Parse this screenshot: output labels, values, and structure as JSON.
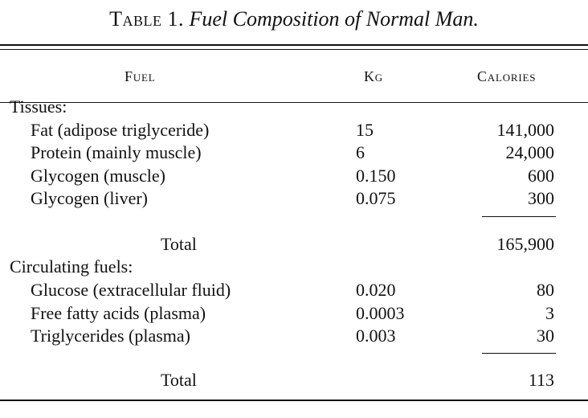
{
  "caption": {
    "label": "Table 1.",
    "title": "Fuel Composition of Normal Man."
  },
  "headers": {
    "fuel": "Fuel",
    "kg": "Kg",
    "calories": "Calories"
  },
  "tissues": {
    "heading": "Tissues:",
    "rows": [
      {
        "fuel": "Fat (adipose triglyceride)",
        "kg": "15",
        "calories": "141,000"
      },
      {
        "fuel": "Protein (mainly muscle)",
        "kg": "6",
        "calories": "24,000"
      },
      {
        "fuel": "Glycogen (muscle)",
        "kg": "0.150",
        "calories": "600"
      },
      {
        "fuel": "Glycogen (liver)",
        "kg": "0.075",
        "calories": "300"
      }
    ],
    "total_label": "Total",
    "total_calories": "165,900"
  },
  "circulating": {
    "heading": "Circulating fuels:",
    "rows": [
      {
        "fuel": "Glucose (extracellular fluid)",
        "kg": "0.020",
        "calories": "80"
      },
      {
        "fuel": "Free fatty acids (plasma)",
        "kg": "0.0003",
        "calories": "3"
      },
      {
        "fuel": "Triglycerides (plasma)",
        "kg": "0.003",
        "calories": "30"
      }
    ],
    "total_label": "Total",
    "total_calories": "113"
  }
}
